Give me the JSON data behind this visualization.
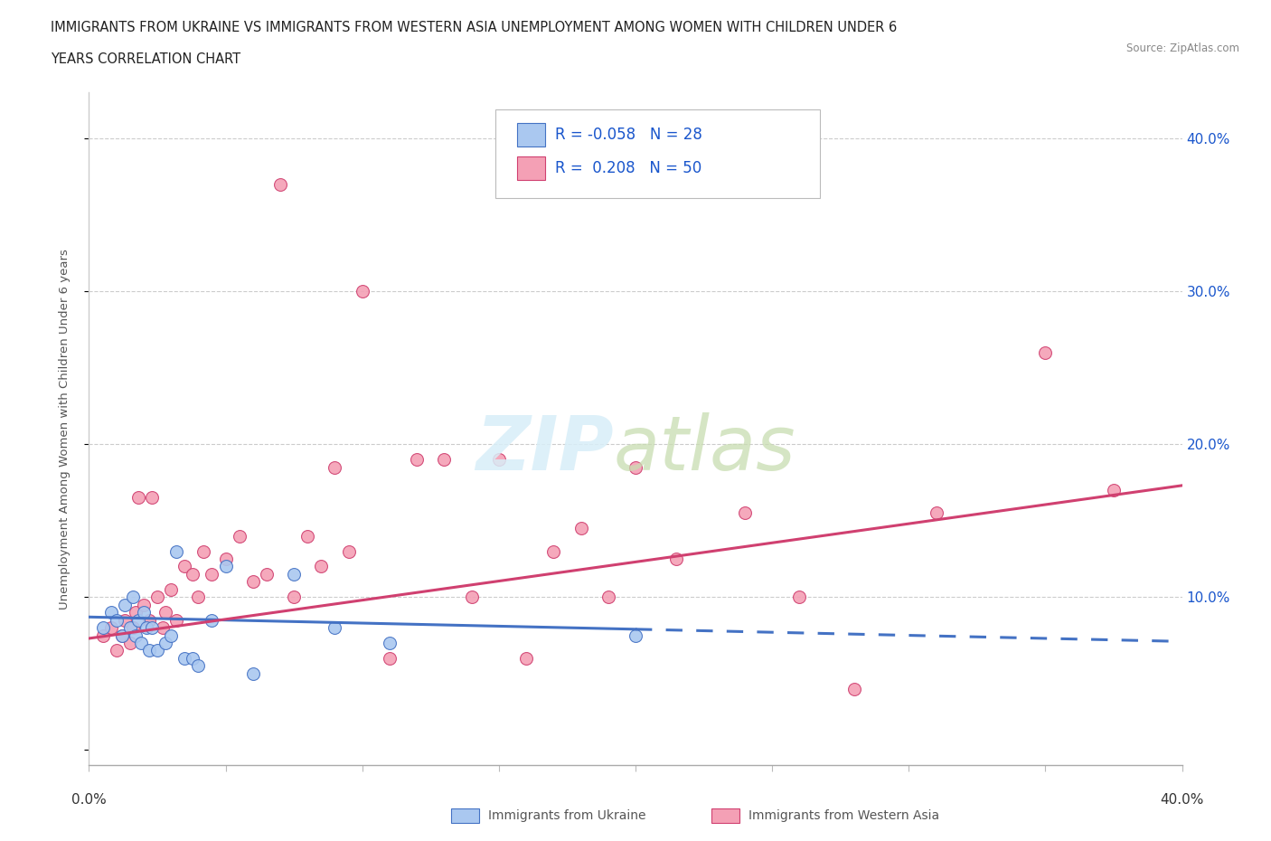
{
  "title_line1": "IMMIGRANTS FROM UKRAINE VS IMMIGRANTS FROM WESTERN ASIA UNEMPLOYMENT AMONG WOMEN WITH CHILDREN UNDER 6",
  "title_line2": "YEARS CORRELATION CHART",
  "source": "Source: ZipAtlas.com",
  "ylabel": "Unemployment Among Women with Children Under 6 years",
  "xlim": [
    0.0,
    0.4
  ],
  "ylim": [
    -0.01,
    0.43
  ],
  "yticks": [
    0.0,
    0.1,
    0.2,
    0.3,
    0.4
  ],
  "ytick_labels": [
    "",
    "10.0%",
    "20.0%",
    "30.0%",
    "40.0%"
  ],
  "xticks": [
    0.0,
    0.05,
    0.1,
    0.15,
    0.2,
    0.25,
    0.3,
    0.35,
    0.4
  ],
  "ukraine_R": -0.058,
  "ukraine_N": 28,
  "western_asia_R": 0.208,
  "western_asia_N": 50,
  "ukraine_color": "#aac8f0",
  "ukraine_line_color": "#4472c4",
  "western_asia_color": "#f4a0b5",
  "western_asia_line_color": "#d04070",
  "legend_color": "#1a56cc",
  "ukraine_x": [
    0.005,
    0.008,
    0.01,
    0.012,
    0.013,
    0.015,
    0.016,
    0.017,
    0.018,
    0.019,
    0.02,
    0.021,
    0.022,
    0.023,
    0.025,
    0.028,
    0.03,
    0.032,
    0.035,
    0.038,
    0.04,
    0.045,
    0.05,
    0.06,
    0.075,
    0.09,
    0.11,
    0.2
  ],
  "ukraine_y": [
    0.08,
    0.09,
    0.085,
    0.075,
    0.095,
    0.08,
    0.1,
    0.075,
    0.085,
    0.07,
    0.09,
    0.08,
    0.065,
    0.08,
    0.065,
    0.07,
    0.075,
    0.13,
    0.06,
    0.06,
    0.055,
    0.085,
    0.12,
    0.05,
    0.115,
    0.08,
    0.07,
    0.075
  ],
  "western_asia_x": [
    0.005,
    0.008,
    0.01,
    0.012,
    0.013,
    0.015,
    0.016,
    0.017,
    0.018,
    0.02,
    0.022,
    0.023,
    0.025,
    0.027,
    0.028,
    0.03,
    0.032,
    0.035,
    0.038,
    0.04,
    0.042,
    0.045,
    0.05,
    0.055,
    0.06,
    0.065,
    0.07,
    0.075,
    0.08,
    0.085,
    0.09,
    0.095,
    0.1,
    0.11,
    0.12,
    0.13,
    0.14,
    0.15,
    0.16,
    0.17,
    0.18,
    0.19,
    0.2,
    0.215,
    0.24,
    0.26,
    0.28,
    0.31,
    0.35,
    0.375
  ],
  "western_asia_y": [
    0.075,
    0.08,
    0.065,
    0.075,
    0.085,
    0.07,
    0.08,
    0.09,
    0.165,
    0.095,
    0.085,
    0.165,
    0.1,
    0.08,
    0.09,
    0.105,
    0.085,
    0.12,
    0.115,
    0.1,
    0.13,
    0.115,
    0.125,
    0.14,
    0.11,
    0.115,
    0.37,
    0.1,
    0.14,
    0.12,
    0.185,
    0.13,
    0.3,
    0.06,
    0.19,
    0.19,
    0.1,
    0.19,
    0.06,
    0.13,
    0.145,
    0.1,
    0.185,
    0.125,
    0.155,
    0.1,
    0.04,
    0.155,
    0.26,
    0.17
  ],
  "ukraine_trendline_x0": 0.0,
  "ukraine_trendline_x_solid_end": 0.2,
  "ukraine_trendline_x_dash_end": 0.4,
  "ukraine_trendline_y0": 0.087,
  "ukraine_trendline_y_solid_end": 0.079,
  "ukraine_trendline_y_dash_end": 0.071,
  "western_trendline_x0": 0.0,
  "western_trendline_x_end": 0.4,
  "western_trendline_y0": 0.073,
  "western_trendline_y_end": 0.173
}
